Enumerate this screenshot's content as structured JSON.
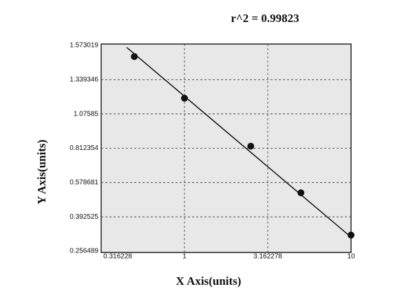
{
  "chart_data": {
    "type": "scatter",
    "title": "r^2 = 0.99823",
    "x_label": "X Axis(units)",
    "y_label": "Y Axis(units)",
    "x": [
      0.5,
      1,
      2.5,
      5,
      10
    ],
    "values": [
      1.497,
      1.197,
      0.828,
      0.523,
      0.32
    ],
    "color": "#111111",
    "fit_line": {
      "x": [
        0.45,
        10
      ],
      "values": [
        1.559,
        0.312
      ]
    },
    "xlog": true,
    "xlim": [
      0.316228,
      10
    ],
    "xticks": [
      0.316228,
      1,
      3.162278,
      10
    ],
    "ylim": [
      0.256489,
      1.573019
    ],
    "yticks": [
      0.256489,
      0.392525,
      0.578681,
      0.812354,
      1.07585,
      1.339346,
      1.573019
    ],
    "grid": true
  }
}
